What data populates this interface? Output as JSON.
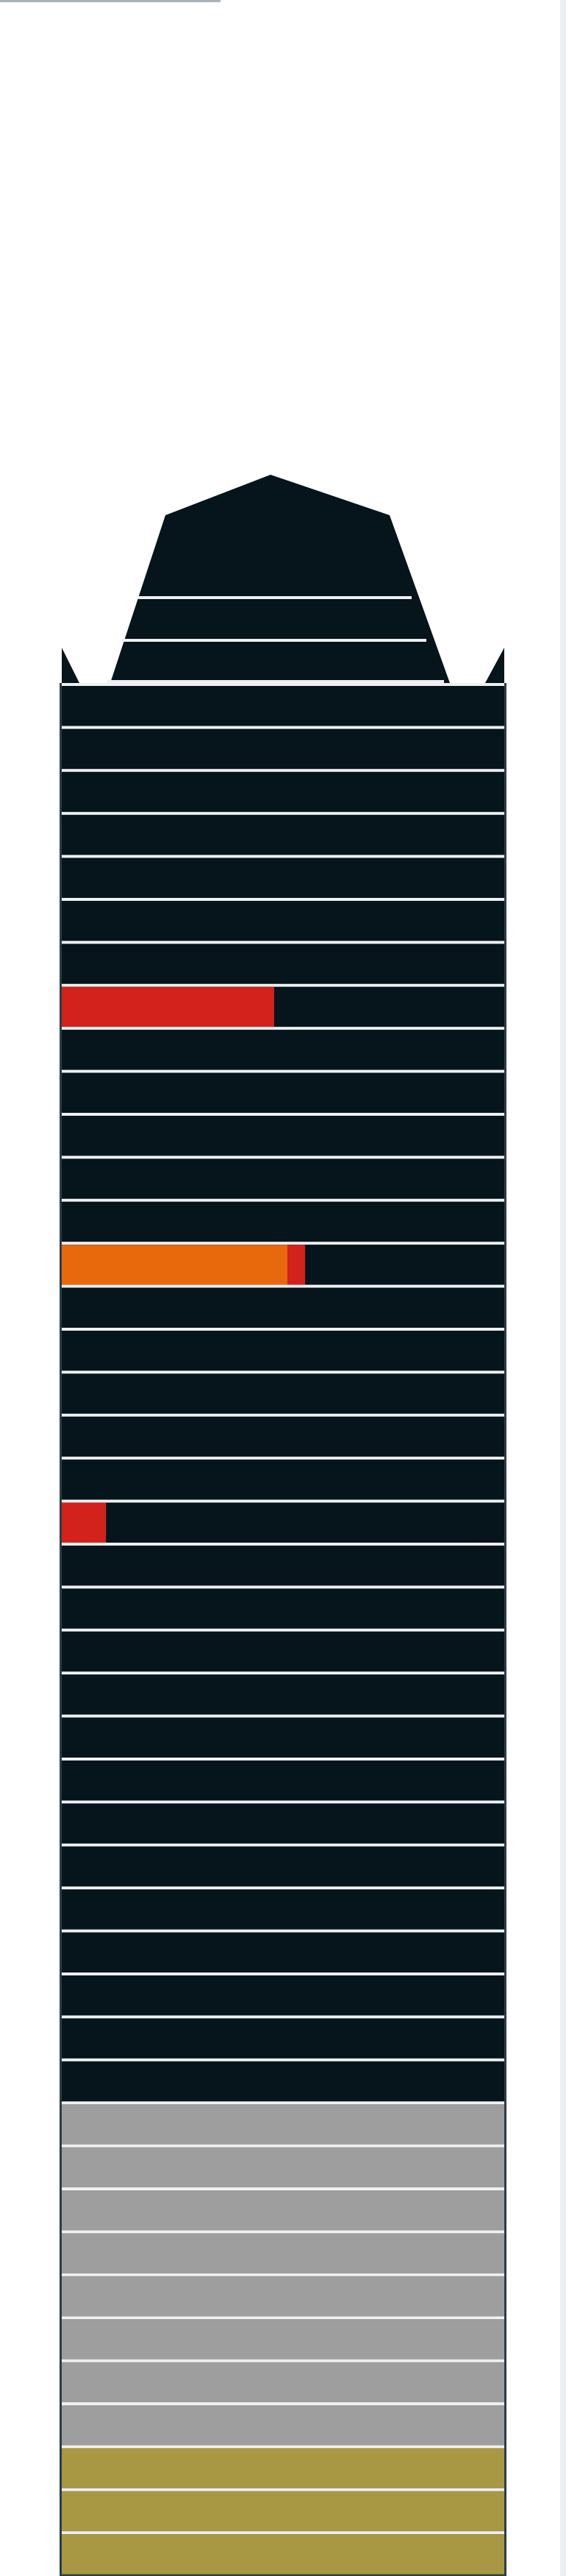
{
  "colors": {
    "page_background": "#ffffff",
    "floor_default": "#06141b",
    "floor_separator": "#eef0f2",
    "tower_outline": "#2c3e46",
    "crown": "#06141b",
    "band_gray": "#9e9e9e",
    "band_olive": "#a89843",
    "highlight_red": "#d3221c",
    "highlight_orange": "#e8680c"
  },
  "diagram": {
    "total_floors": 44,
    "floors_from_top": [
      {
        "fill": "dark"
      },
      {
        "fill": "dark"
      },
      {
        "fill": "dark"
      },
      {
        "fill": "dark"
      },
      {
        "fill": "dark"
      },
      {
        "fill": "dark"
      },
      {
        "fill": "dark"
      },
      {
        "fill": "dark",
        "highlight": [
          {
            "color": "highlight_red",
            "fraction": 0.48
          }
        ]
      },
      {
        "fill": "dark"
      },
      {
        "fill": "dark"
      },
      {
        "fill": "dark"
      },
      {
        "fill": "dark"
      },
      {
        "fill": "dark"
      },
      {
        "fill": "dark",
        "highlight": [
          {
            "color": "highlight_orange",
            "fraction": 0.51
          },
          {
            "color": "highlight_red",
            "fraction": 0.04
          }
        ]
      },
      {
        "fill": "dark"
      },
      {
        "fill": "dark"
      },
      {
        "fill": "dark"
      },
      {
        "fill": "dark"
      },
      {
        "fill": "dark"
      },
      {
        "fill": "dark",
        "highlight": [
          {
            "color": "highlight_red",
            "fraction": 0.1
          }
        ]
      },
      {
        "fill": "dark"
      },
      {
        "fill": "dark"
      },
      {
        "fill": "dark"
      },
      {
        "fill": "dark"
      },
      {
        "fill": "dark"
      },
      {
        "fill": "dark"
      },
      {
        "fill": "dark"
      },
      {
        "fill": "dark"
      },
      {
        "fill": "dark"
      },
      {
        "fill": "dark"
      },
      {
        "fill": "dark"
      },
      {
        "fill": "dark"
      },
      {
        "fill": "dark"
      },
      {
        "fill": "gray"
      },
      {
        "fill": "gray"
      },
      {
        "fill": "gray"
      },
      {
        "fill": "gray"
      },
      {
        "fill": "gray"
      },
      {
        "fill": "gray"
      },
      {
        "fill": "gray"
      },
      {
        "fill": "gray"
      },
      {
        "fill": "olive"
      },
      {
        "fill": "olive"
      },
      {
        "fill": "olive"
      }
    ]
  }
}
